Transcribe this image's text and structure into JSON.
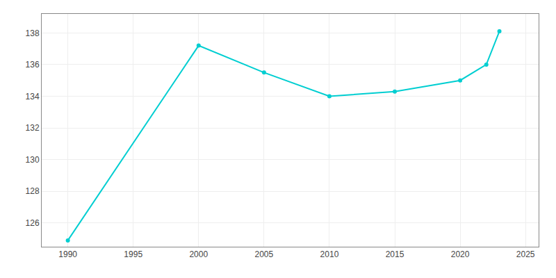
{
  "chart_data": {
    "type": "line",
    "x": [
      1990,
      2000,
      2005,
      2010,
      2015,
      2020,
      2022,
      2023
    ],
    "values": [
      124.9,
      137.2,
      135.5,
      134.0,
      134.3,
      135.0,
      136.0,
      138.1
    ],
    "color": "#00CED1",
    "marker": "circle",
    "xlim": [
      1988,
      2026
    ],
    "ylim": [
      124.5,
      139.2
    ],
    "xticks": [
      1990,
      1995,
      2000,
      2005,
      2010,
      2015,
      2020,
      2025
    ],
    "yticks": [
      126,
      128,
      130,
      132,
      134,
      136,
      138
    ],
    "grid": true
  }
}
